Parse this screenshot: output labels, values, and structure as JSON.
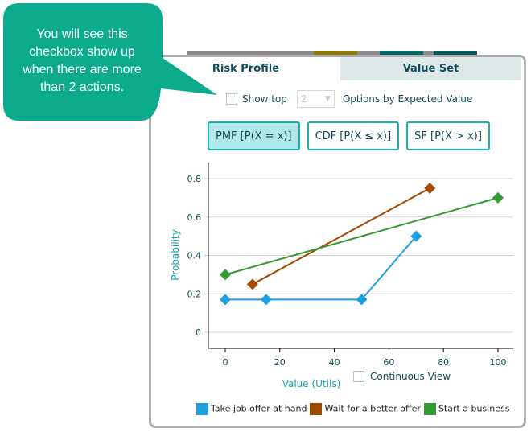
{
  "callout": {
    "text": "You will see this checkbox show up when there are more than 2 actions."
  },
  "tabs": [
    {
      "label": "Risk Profile",
      "active": true
    },
    {
      "label": "Value Set",
      "active": false
    }
  ],
  "options": {
    "show_top_label": "Show top",
    "show_top_checked": false,
    "top_n_value": "2",
    "suffix": "Options by Expected Value"
  },
  "buttons": [
    {
      "label": "PMF [P(X = x)]",
      "active": true
    },
    {
      "label": "CDF [P(X ≤ x)]",
      "active": false
    },
    {
      "label": "SF [P(X > x)]",
      "active": false
    }
  ],
  "continuous_view": {
    "label": "Continuous View",
    "checked": false
  },
  "colors": {
    "accent": "#14b5b0",
    "callout": "#0bab8c"
  },
  "chart_data": {
    "type": "line",
    "xlabel": "Value (Utils)",
    "ylabel": "Probability",
    "xlim": [
      0,
      100
    ],
    "ylim": [
      0,
      0.8
    ],
    "xticks": [
      0,
      20,
      40,
      60,
      80,
      100
    ],
    "yticks": [
      0,
      0.2,
      0.4,
      0.6,
      0.8
    ],
    "ytick_labels": [
      "0",
      "0.2",
      "0.4",
      "0.6",
      "0.8"
    ],
    "grid": "horizontal",
    "legend": "bottom",
    "series": [
      {
        "name": "Take job offer at hand",
        "color": "#1e9fe0",
        "points": [
          [
            0,
            0.17
          ],
          [
            15,
            0.17
          ],
          [
            50,
            0.17
          ],
          [
            70,
            0.5
          ]
        ]
      },
      {
        "name": "Wait for a better offer",
        "color": "#a04a00",
        "points": [
          [
            10,
            0.25
          ],
          [
            75,
            0.75
          ]
        ]
      },
      {
        "name": "Start a business",
        "color": "#349a34",
        "points": [
          [
            0,
            0.3
          ],
          [
            100,
            0.7
          ]
        ]
      }
    ]
  }
}
